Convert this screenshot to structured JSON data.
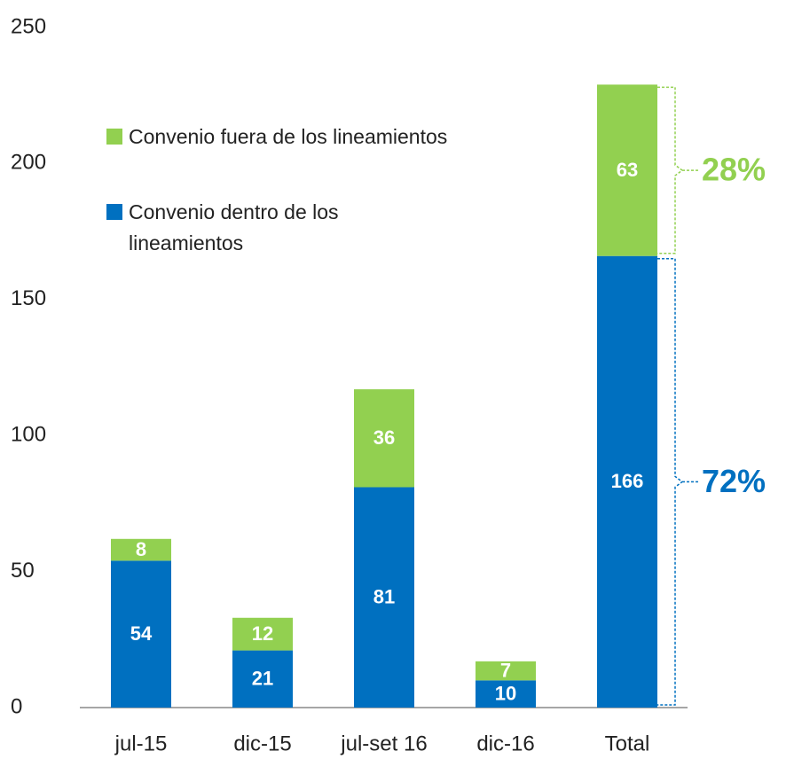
{
  "chart_data": {
    "type": "stacked_bar",
    "categories": [
      "jul-15",
      "dic-15",
      "jul-set 16",
      "dic-16",
      "Total"
    ],
    "series": [
      {
        "name": "Convenio dentro de los lineamientos",
        "color": "#0070c0",
        "values": [
          54,
          21,
          81,
          10,
          166
        ]
      },
      {
        "name": "Convenio fuera de los lineamientos",
        "color": "#92d050",
        "values": [
          8,
          12,
          36,
          7,
          63
        ]
      }
    ],
    "annotations": [
      "72%",
      "28%"
    ],
    "ylim": [
      0,
      250
    ],
    "yticks": [
      0,
      50,
      100,
      150,
      200,
      250
    ],
    "grid": false
  }
}
